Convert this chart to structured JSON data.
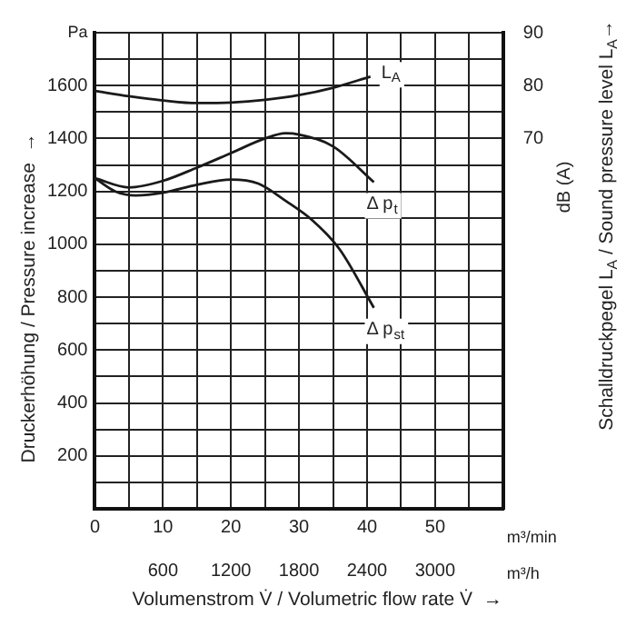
{
  "chart_data": {
    "type": "line",
    "xlabel": "Volumenstrom V̇ / Volumetric flow rate V̇  →",
    "ylabel": "Druckerhöhung / Pressure increase  →",
    "y2label": "Schalldruckpegel L$_{A}$ / Sound pressure level L$_{A}$→",
    "annotations": [
      "Pa",
      "dB (A)",
      "m³/min",
      "m³/h"
    ],
    "series": [
      {
        "name": "L$_{A}$",
        "color": "#1a1a1a",
        "axis": "y2",
        "x": [
          0,
          5,
          10,
          15,
          20,
          25,
          30,
          35,
          40.5
        ],
        "values": [
          79,
          78,
          77.2,
          76.7,
          76.8,
          77.3,
          78.2,
          79.6,
          81.7
        ]
      },
      {
        "name": "Δ p$_{t}$",
        "color": "#1a1a1a",
        "x": [
          0,
          5,
          10,
          15,
          20,
          25,
          28,
          30,
          35,
          41
        ],
        "values": [
          1250,
          1215,
          1240,
          1290,
          1345,
          1400,
          1420,
          1415,
          1370,
          1235
        ]
      },
      {
        "name": "Δ p$_{st}$",
        "color": "#1a1a1a",
        "x": [
          0,
          3,
          6,
          10,
          15,
          20,
          24,
          28,
          32,
          36,
          41
        ],
        "values": [
          1250,
          1200,
          1185,
          1195,
          1225,
          1245,
          1230,
          1165,
          1090,
          980,
          760
        ]
      }
    ],
    "xlim": [
      0,
      60
    ],
    "xticks": [
      0,
      {
        "value": 5,
        "label": null
      },
      10,
      {
        "value": 15,
        "label": null
      },
      20,
      {
        "value": 25,
        "label": null
      },
      30,
      {
        "value": 35,
        "label": null
      },
      40,
      {
        "value": 45,
        "label": null
      },
      50,
      {
        "value": 55,
        "label": null
      },
      {
        "value": 60,
        "label": null
      }
    ],
    "x2lim": [
      0,
      3600
    ],
    "x2ticks": [
      600,
      1200,
      1800,
      2400,
      3000
    ],
    "ylim": [
      0,
      1800
    ],
    "yticks": [
      {
        "value": 100,
        "label": null
      },
      200,
      {
        "value": 300,
        "label": null
      },
      400,
      {
        "value": 500,
        "label": null
      },
      600,
      {
        "value": 700,
        "label": null
      },
      800,
      {
        "value": 900,
        "label": null
      },
      1000,
      {
        "value": 1100,
        "label": null
      },
      1200,
      {
        "value": 1300,
        "label": null
      },
      1400,
      {
        "value": 1500,
        "label": null
      },
      1600,
      {
        "value": 1700,
        "label": null
      },
      {
        "value": 1800,
        "label": null
      }
    ],
    "y2lim": [
      0,
      90
    ],
    "y2ticks": [
      70,
      80,
      90
    ],
    "grid": true,
    "legend": false,
    "marker": "none",
    "line_style": "solid"
  }
}
